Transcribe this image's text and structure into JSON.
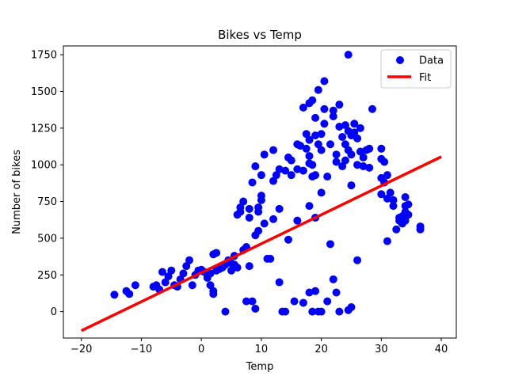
{
  "chart_data": {
    "type": "scatter",
    "title": "Bikes vs Temp",
    "xlabel": "Temp",
    "ylabel": "Number of bikes",
    "xlim": [
      -23,
      42.5
    ],
    "ylim": [
      -180,
      1810
    ],
    "xticks": [
      -20,
      -10,
      0,
      10,
      20,
      30,
      40
    ],
    "yticks": [
      0,
      250,
      500,
      750,
      1000,
      1250,
      1500,
      1750
    ],
    "grid": false,
    "legend": "top-right",
    "colors": {
      "data": "#0000ff",
      "fit": "#ff0000"
    },
    "series": [
      {
        "name": "Data",
        "kind": "scatter",
        "points": [
          [
            -14.5,
            115
          ],
          [
            -12.5,
            140
          ],
          [
            -12,
            120
          ],
          [
            -11,
            180
          ],
          [
            -8,
            170
          ],
          [
            -7.5,
            180
          ],
          [
            -7,
            150
          ],
          [
            -6.5,
            270
          ],
          [
            -6,
            200
          ],
          [
            -5.5,
            240
          ],
          [
            -5,
            280
          ],
          [
            -4.5,
            180
          ],
          [
            -4,
            170
          ],
          [
            -3.5,
            220
          ],
          [
            -3,
            260
          ],
          [
            -2.5,
            310
          ],
          [
            -2,
            350
          ],
          [
            -1.5,
            180
          ],
          [
            -1,
            250
          ],
          [
            -0.5,
            280
          ],
          [
            0,
            285
          ],
          [
            0.5,
            270
          ],
          [
            1,
            230
          ],
          [
            1.5,
            260
          ],
          [
            1.5,
            180
          ],
          [
            2,
            120
          ],
          [
            2,
            140
          ],
          [
            2,
            390
          ],
          [
            2.5,
            400
          ],
          [
            2.5,
            280
          ],
          [
            3,
            290
          ],
          [
            3.5,
            300
          ],
          [
            4,
            0
          ],
          [
            4,
            320
          ],
          [
            4.5,
            350
          ],
          [
            5,
            330
          ],
          [
            5,
            280
          ],
          [
            5.5,
            320
          ],
          [
            5.5,
            380
          ],
          [
            6,
            660
          ],
          [
            6,
            300
          ],
          [
            6.5,
            710
          ],
          [
            6.5,
            680
          ],
          [
            7,
            750
          ],
          [
            7,
            420
          ],
          [
            7.5,
            440
          ],
          [
            7.5,
            70
          ],
          [
            8,
            700
          ],
          [
            8,
            640
          ],
          [
            8,
            310
          ],
          [
            8.5,
            70
          ],
          [
            8.5,
            880
          ],
          [
            9,
            20
          ],
          [
            9,
            520
          ],
          [
            9,
            990
          ],
          [
            9.5,
            550
          ],
          [
            9.5,
            680
          ],
          [
            9.5,
            710
          ],
          [
            10,
            760
          ],
          [
            10,
            790
          ],
          [
            10,
            930
          ],
          [
            10.5,
            1070
          ],
          [
            10.5,
            600
          ],
          [
            11,
            360
          ],
          [
            11.5,
            360
          ],
          [
            12,
            890
          ],
          [
            12,
            1100
          ],
          [
            12,
            630
          ],
          [
            12.5,
            930
          ],
          [
            13,
            700
          ],
          [
            13,
            200
          ],
          [
            13,
            970
          ],
          [
            13.5,
            0
          ],
          [
            14,
            960
          ],
          [
            14,
            0
          ],
          [
            14.5,
            490
          ],
          [
            14.5,
            1050
          ],
          [
            15,
            930
          ],
          [
            15,
            1030
          ],
          [
            15.5,
            70
          ],
          [
            16,
            620
          ],
          [
            16,
            1140
          ],
          [
            16,
            970
          ],
          [
            16.5,
            1130
          ],
          [
            17,
            1390
          ],
          [
            17,
            60
          ],
          [
            17,
            960
          ],
          [
            17.5,
            1210
          ],
          [
            17.5,
            1110
          ],
          [
            18,
            130
          ],
          [
            18,
            1010
          ],
          [
            18,
            1170
          ],
          [
            18,
            1420
          ],
          [
            18,
            720
          ],
          [
            18,
            1060
          ],
          [
            18.5,
            1440
          ],
          [
            18.5,
            0
          ],
          [
            18.5,
            1000
          ],
          [
            18.5,
            920
          ],
          [
            19,
            640
          ],
          [
            19,
            140
          ],
          [
            19,
            930
          ],
          [
            19,
            1320
          ],
          [
            19,
            1200
          ],
          [
            19.5,
            0
          ],
          [
            19.5,
            1140
          ],
          [
            19.5,
            1510
          ],
          [
            20,
            0
          ],
          [
            20,
            810
          ],
          [
            20,
            1100
          ],
          [
            20,
            1210
          ],
          [
            20.5,
            1570
          ],
          [
            20.5,
            1380
          ],
          [
            20.5,
            1280
          ],
          [
            21,
            920
          ],
          [
            21,
            70
          ],
          [
            21.5,
            1140
          ],
          [
            21.5,
            460
          ],
          [
            22,
            1370
          ],
          [
            22,
            1330
          ],
          [
            22,
            220
          ],
          [
            22.5,
            1070
          ],
          [
            22.5,
            130
          ],
          [
            22.5,
            1020
          ],
          [
            23,
            1410
          ],
          [
            23,
            1260
          ],
          [
            23,
            0
          ],
          [
            23.5,
            1190
          ],
          [
            23.5,
            990
          ],
          [
            24,
            1270
          ],
          [
            24,
            1140
          ],
          [
            24,
            1030
          ],
          [
            24.5,
            1750
          ],
          [
            24.5,
            1230
          ],
          [
            24.5,
            10
          ],
          [
            24.5,
            1100
          ],
          [
            25,
            860
          ],
          [
            25,
            30
          ],
          [
            25,
            1200
          ],
          [
            25,
            1070
          ],
          [
            25.5,
            1280
          ],
          [
            25.5,
            1220
          ],
          [
            26,
            1000
          ],
          [
            26,
            350
          ],
          [
            26,
            1180
          ],
          [
            26.5,
            1090
          ],
          [
            26.5,
            1250
          ],
          [
            27,
            1050
          ],
          [
            27,
            990
          ],
          [
            27.5,
            1100
          ],
          [
            28,
            980
          ],
          [
            28,
            1110
          ],
          [
            28.5,
            1380
          ],
          [
            30,
            1110
          ],
          [
            30,
            1040
          ],
          [
            30,
            910
          ],
          [
            30,
            800
          ],
          [
            30.5,
            1020
          ],
          [
            30.5,
            880
          ],
          [
            31,
            930
          ],
          [
            31,
            770
          ],
          [
            31,
            480
          ],
          [
            31.5,
            810
          ],
          [
            32,
            760
          ],
          [
            32,
            720
          ],
          [
            32.5,
            560
          ],
          [
            33,
            620
          ],
          [
            33,
            640
          ],
          [
            33.5,
            600
          ],
          [
            33.5,
            650
          ],
          [
            34,
            780
          ],
          [
            34,
            720
          ],
          [
            34,
            620
          ],
          [
            34,
            680
          ],
          [
            34.5,
            730
          ],
          [
            34.5,
            660
          ],
          [
            36.5,
            560
          ],
          [
            36.5,
            580
          ]
        ]
      },
      {
        "name": "Fit",
        "kind": "line",
        "points": [
          [
            -20,
            -130
          ],
          [
            40,
            1055
          ]
        ]
      }
    ]
  }
}
